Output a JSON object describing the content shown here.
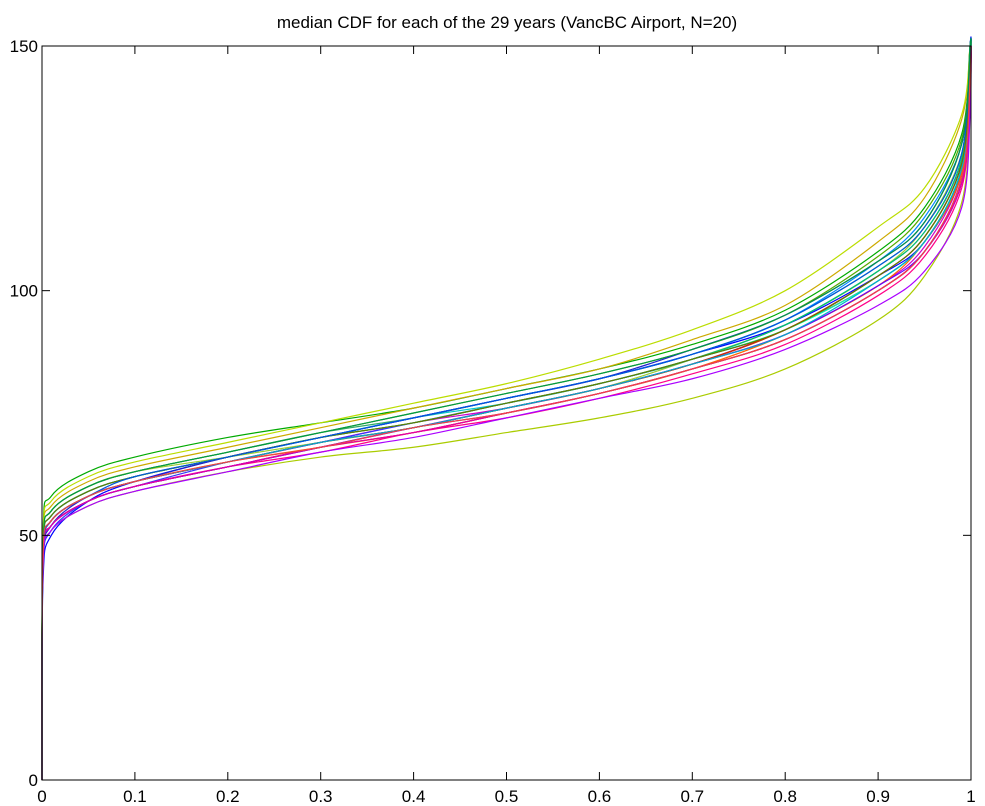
{
  "chart_data": {
    "type": "line",
    "title": "median CDF for each of the 29 years (VancBC Airport, N=20)",
    "xlabel": "",
    "ylabel": "",
    "xlim": [
      0,
      1
    ],
    "ylim": [
      0,
      150
    ],
    "x_ticks": [
      0,
      0.1,
      0.2,
      0.3,
      0.4,
      0.5,
      0.6,
      0.7,
      0.8,
      0.9,
      1
    ],
    "x_tick_labels": [
      "0",
      "0.1",
      "0.2",
      "0.3",
      "0.4",
      "0.5",
      "0.6",
      "0.7",
      "0.8",
      "0.9",
      "1"
    ],
    "y_ticks": [
      0,
      50,
      100,
      150
    ],
    "y_tick_labels": [
      "0",
      "50",
      "100",
      "150"
    ],
    "grid": false,
    "legend": "none",
    "x": [
      0.001,
      0.01,
      0.05,
      0.1,
      0.2,
      0.3,
      0.4,
      0.5,
      0.6,
      0.7,
      0.8,
      0.9,
      0.95,
      0.99,
      0.999
    ],
    "series": [
      {
        "color": "#9acd32",
        "values": [
          47,
          55,
          60,
          63,
          66,
          69,
          72,
          76,
          80,
          86,
          93,
          104,
          113,
          128,
          145
        ]
      },
      {
        "color": "#00aa00",
        "values": [
          50,
          58,
          63,
          66,
          70,
          73,
          76,
          80,
          84,
          89,
          96,
          108,
          117,
          132,
          150
        ]
      },
      {
        "color": "#0000ff",
        "values": [
          40,
          50,
          57,
          61,
          66,
          70,
          74,
          78,
          82,
          87,
          93,
          103,
          110,
          125,
          150
        ]
      },
      {
        "color": "#ff0000",
        "values": [
          44,
          52,
          57,
          60,
          64,
          68,
          71,
          75,
          79,
          84,
          90,
          100,
          108,
          122,
          140
        ]
      },
      {
        "color": "#00cccc",
        "values": [
          46,
          54,
          59,
          62,
          66,
          70,
          74,
          77,
          81,
          86,
          92,
          103,
          111,
          126,
          148
        ]
      },
      {
        "color": "#cc00cc",
        "values": [
          45,
          53,
          58,
          61,
          65,
          69,
          73,
          76,
          80,
          85,
          91,
          101,
          109,
          124,
          145
        ]
      },
      {
        "color": "#aacc00",
        "values": [
          43,
          51,
          56,
          59,
          63,
          66,
          68,
          71,
          74,
          78,
          84,
          94,
          103,
          118,
          138
        ]
      },
      {
        "color": "#aa0055",
        "values": [
          45,
          53,
          58,
          61,
          65,
          69,
          72,
          76,
          80,
          85,
          92,
          102,
          110,
          124,
          144
        ]
      },
      {
        "color": "#3333ff",
        "values": [
          42,
          51,
          57,
          60,
          65,
          69,
          73,
          77,
          81,
          86,
          93,
          104,
          112,
          127,
          150
        ]
      },
      {
        "color": "#33aa66",
        "values": [
          47,
          55,
          60,
          63,
          67,
          71,
          74,
          78,
          82,
          87,
          94,
          105,
          113,
          128,
          150
        ]
      },
      {
        "color": "#ff6600",
        "values": [
          45,
          53,
          58,
          61,
          65,
          68,
          71,
          75,
          79,
          84,
          91,
          101,
          110,
          124,
          144
        ]
      },
      {
        "color": "#00ffaa",
        "values": [
          46,
          54,
          59,
          62,
          66,
          70,
          73,
          77,
          81,
          86,
          92,
          102,
          110,
          125,
          146
        ]
      },
      {
        "color": "#6600ff",
        "values": [
          44,
          52,
          57,
          60,
          64,
          68,
          72,
          76,
          80,
          85,
          91,
          101,
          108,
          122,
          142
        ]
      },
      {
        "color": "#ccaa00",
        "values": [
          48,
          56,
          61,
          64,
          68,
          72,
          76,
          80,
          84,
          90,
          97,
          110,
          119,
          135,
          150
        ]
      },
      {
        "color": "#0088ff",
        "values": [
          46,
          54,
          59,
          62,
          66,
          70,
          74,
          78,
          82,
          87,
          94,
          106,
          115,
          130,
          150
        ]
      },
      {
        "color": "#ff0088",
        "values": [
          45,
          52,
          57,
          60,
          64,
          67,
          71,
          74,
          78,
          83,
          89,
          99,
          107,
          121,
          140
        ]
      },
      {
        "color": "#55aa00",
        "values": [
          47,
          55,
          60,
          63,
          67,
          71,
          75,
          79,
          83,
          88,
          95,
          107,
          116,
          131,
          150
        ]
      },
      {
        "color": "#8800cc",
        "values": [
          44,
          52,
          57,
          60,
          64,
          68,
          72,
          75,
          79,
          84,
          90,
          100,
          108,
          123,
          143
        ]
      },
      {
        "color": "#00cc66",
        "values": [
          46,
          54,
          59,
          62,
          66,
          70,
          73,
          77,
          81,
          86,
          93,
          104,
          112,
          127,
          148
        ]
      },
      {
        "color": "#cc3300",
        "values": [
          45,
          53,
          58,
          61,
          65,
          69,
          72,
          76,
          80,
          85,
          92,
          103,
          111,
          126,
          146
        ]
      },
      {
        "color": "#2222cc",
        "values": [
          43,
          52,
          58,
          61,
          66,
          70,
          74,
          78,
          82,
          88,
          95,
          106,
          114,
          130,
          150
        ]
      },
      {
        "color": "#bbdd00",
        "values": [
          49,
          57,
          62,
          65,
          69,
          73,
          77,
          81,
          86,
          92,
          100,
          113,
          121,
          136,
          150
        ]
      },
      {
        "color": "#00aacc",
        "values": [
          45,
          53,
          58,
          61,
          65,
          69,
          72,
          76,
          80,
          85,
          91,
          102,
          110,
          125,
          146
        ]
      },
      {
        "color": "#dd00aa",
        "values": [
          44,
          52,
          57,
          60,
          64,
          68,
          71,
          75,
          79,
          84,
          90,
          100,
          108,
          122,
          142
        ]
      },
      {
        "color": "#667700",
        "values": [
          46,
          54,
          59,
          62,
          66,
          70,
          73,
          77,
          81,
          86,
          92,
          103,
          111,
          126,
          147
        ]
      },
      {
        "color": "#0055dd",
        "values": [
          44,
          53,
          58,
          62,
          66,
          70,
          74,
          78,
          82,
          87,
          94,
          105,
          113,
          128,
          150
        ]
      },
      {
        "color": "#aa00ff",
        "values": [
          43,
          51,
          56,
          59,
          63,
          67,
          70,
          74,
          78,
          82,
          88,
          97,
          104,
          117,
          136
        ]
      },
      {
        "color": "#009944",
        "values": [
          47,
          55,
          60,
          63,
          67,
          71,
          75,
          79,
          83,
          88,
          95,
          106,
          114,
          130,
          150
        ]
      },
      {
        "color": "#ee4444",
        "values": [
          45,
          53,
          58,
          61,
          65,
          68,
          72,
          75,
          79,
          84,
          90,
          100,
          108,
          123,
          143
        ]
      }
    ]
  }
}
